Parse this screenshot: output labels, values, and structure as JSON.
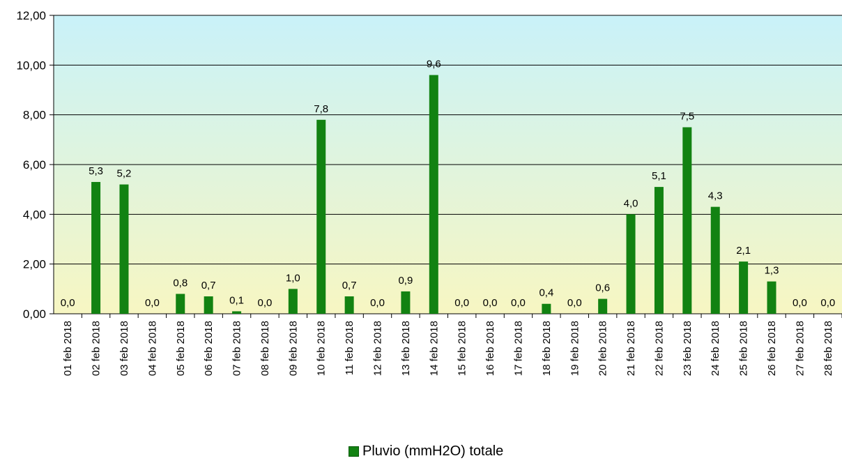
{
  "chart_data": {
    "type": "bar",
    "categories": [
      "01 feb 2018",
      "02 feb 2018",
      "03 feb 2018",
      "04 feb 2018",
      "05 feb 2018",
      "06 feb 2018",
      "07 feb 2018",
      "08 feb 2018",
      "09 feb 2018",
      "10 feb 2018",
      "11 feb 2018",
      "12 feb 2018",
      "13 feb 2018",
      "14 feb 2018",
      "15 feb 2018",
      "16 feb 2018",
      "17 feb 2018",
      "18 feb 2018",
      "19 feb 2018",
      "20 feb 2018",
      "21 feb 2018",
      "22 feb 2018",
      "23 feb 2018",
      "24 feb 2018",
      "25 feb 2018",
      "26 feb 2018",
      "27 feb 2018",
      "28 feb 2018"
    ],
    "series": [
      {
        "name": "Pluvio (mmH2O) totale",
        "values": [
          0.0,
          5.3,
          5.2,
          0.0,
          0.8,
          0.7,
          0.1,
          0.0,
          1.0,
          7.8,
          0.7,
          0.0,
          0.9,
          9.6,
          0.0,
          0.0,
          0.0,
          0.4,
          0.0,
          0.6,
          4.0,
          5.1,
          7.5,
          4.3,
          2.1,
          1.3,
          0.0,
          0.0
        ],
        "labels": [
          "0,0",
          "5,3",
          "5,2",
          "0,0",
          "0,8",
          "0,7",
          "0,1",
          "0,0",
          "1,0",
          "7,8",
          "0,7",
          "0,0",
          "0,9",
          "9,6",
          "0,0",
          "0,0",
          "0,0",
          "0,4",
          "0,0",
          "0,6",
          "4,0",
          "5,1",
          "7,5",
          "4,3",
          "2,1",
          "1,3",
          "0,0",
          "0,0"
        ],
        "color": "#128212"
      }
    ],
    "ylim": [
      0,
      12
    ],
    "yticks": [
      0,
      2,
      4,
      6,
      8,
      10,
      12
    ],
    "ytick_labels": [
      "0,00",
      "2,00",
      "4,00",
      "6,00",
      "8,00",
      "10,00",
      "12,00"
    ],
    "grid": true,
    "legend_position": "bottom-center",
    "background_gradient": [
      "#c9f2f9",
      "#f7f6c2"
    ]
  }
}
